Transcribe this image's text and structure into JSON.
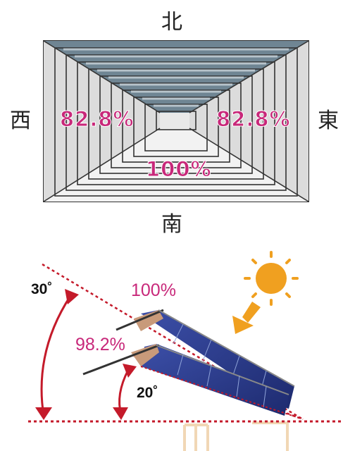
{
  "roof_plan": {
    "north": "北",
    "south": "南",
    "west": "西",
    "east": "東",
    "west_pct": "82.8%",
    "east_pct": "82.8%",
    "south_pct": "100%"
  },
  "tilt": {
    "angle_30": "30˚",
    "angle_20": "20˚",
    "pct_30": "100%",
    "pct_20": "98.2%"
  },
  "colors": {
    "pink_label": "#c8287a",
    "red_line": "#c41a2a",
    "roof_north": "#6f8593",
    "panel_blue": "#2a3a8c",
    "sun": "#f0a020"
  }
}
